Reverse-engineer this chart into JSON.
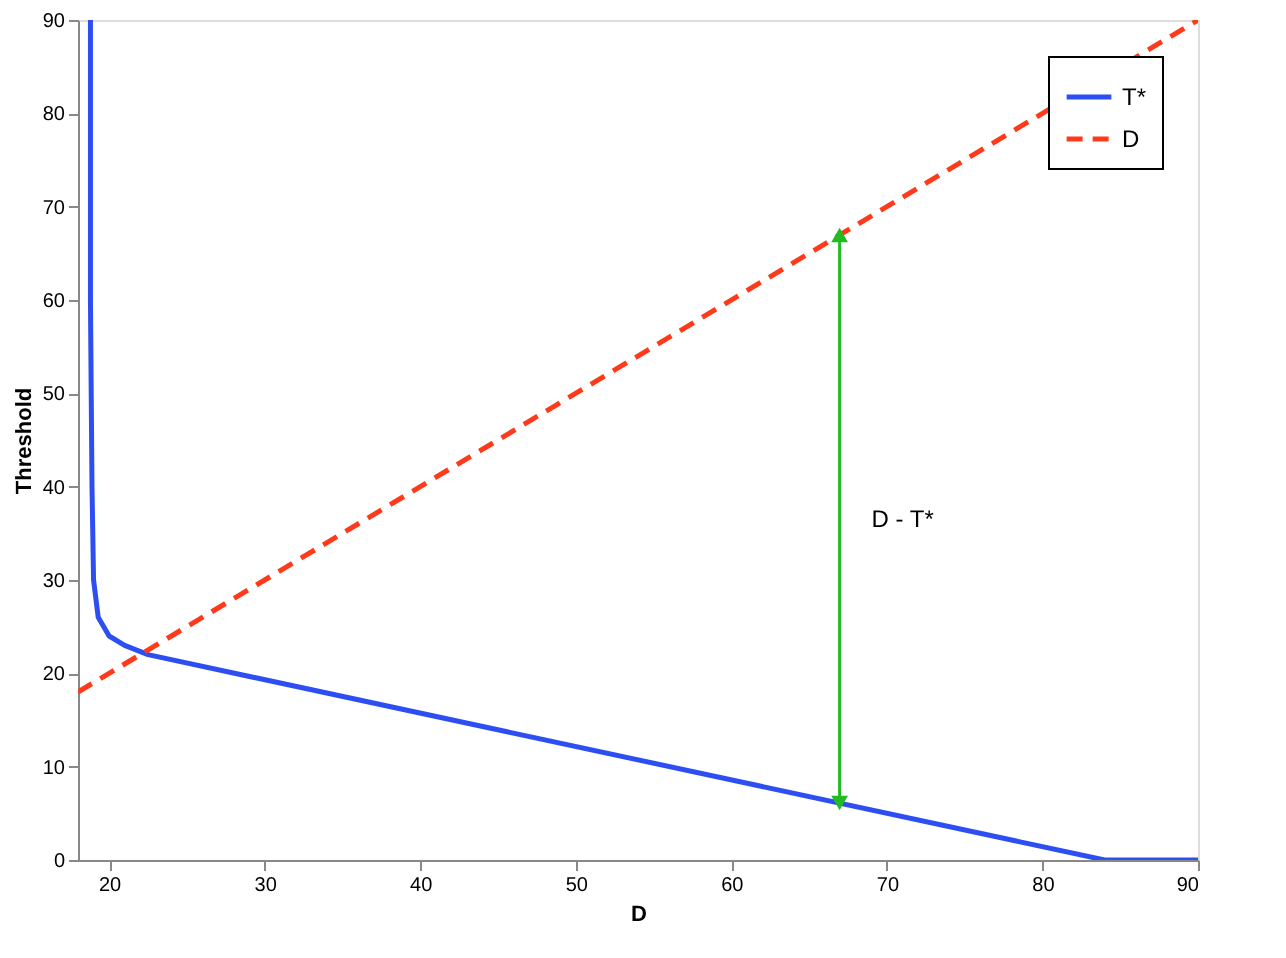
{
  "chart_data": {
    "type": "line",
    "xlabel": "D",
    "ylabel": "Threshold",
    "xlim": [
      18,
      90
    ],
    "ylim": [
      0,
      90
    ],
    "xticks": [
      20,
      30,
      40,
      50,
      60,
      70,
      80,
      90
    ],
    "yticks": [
      0,
      10,
      20,
      30,
      40,
      50,
      60,
      70,
      80,
      90
    ],
    "series": [
      {
        "name": "T*",
        "color": "#2d4ff2",
        "line_style": "solid",
        "x": [
          18.8,
          18.8,
          18.9,
          19.0,
          19.3,
          20,
          21,
          22.5,
          84,
          90
        ],
        "values": [
          90,
          60,
          40,
          30,
          26,
          24,
          23,
          22,
          0,
          0
        ]
      },
      {
        "name": "D",
        "color": "#ff3a1a",
        "line_style": "dashed",
        "x": [
          18,
          90
        ],
        "values": [
          18,
          90
        ]
      }
    ],
    "annotations": [
      "D - T*"
    ],
    "legend": "top right",
    "grid": false
  }
}
